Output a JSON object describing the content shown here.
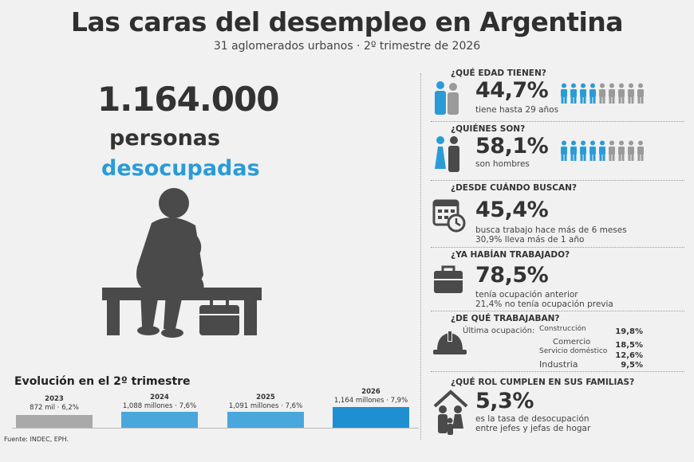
{
  "title": "Las caras del desempleo en Argentina",
  "subtitle": "31 aglomerados urbanos · 2º trimestre de 2026",
  "headline": {
    "number": "1.164.000",
    "line1": "personas",
    "line2": "desocupadas"
  },
  "colors": {
    "accent": "#2b9bd6",
    "gray": "#9a9a9a",
    "dark": "#4a4a4a"
  },
  "sections": {
    "age": {
      "title": "¿QUÉ EDAD TIENEN?",
      "percent": "44,7%",
      "desc": "tiene hasta 29 años",
      "icons_filled": 4,
      "icons_total": 9
    },
    "who": {
      "title": "¿QUIÉNES SON?",
      "percent": "58,1%",
      "desc": "son hombres",
      "icons_filled": 5,
      "icons_total": 9
    },
    "since": {
      "title": "¿DESDE CUÁNDO BUSCAN?",
      "percent": "45,4%",
      "desc1": "busca trabajo hace más de 6 meses",
      "desc2": "30,9% lleva más de 1 año"
    },
    "worked": {
      "title": "¿YA HABÍAN TRABAJADO?",
      "percent": "78,5%",
      "desc1": "tenía ocupación anterior",
      "desc2": "21,4% no tenía ocupación previa"
    },
    "occupation": {
      "title": "¿DE QUÉ TRABAJABAN?",
      "label": "Última ocupación:",
      "items": [
        {
          "name": "Construcción",
          "value": "19,8%"
        },
        {
          "name": "Comercio",
          "value": "18,5%"
        },
        {
          "name": "Servicio doméstico",
          "value": "12,6%"
        },
        {
          "name": "Industria",
          "value": "9,5%"
        }
      ]
    },
    "family": {
      "title": "¿QUÉ ROL CUMPLEN EN SUS FAMILIAS?",
      "percent": "5,3%",
      "desc1": "es la tasa de desocupación",
      "desc2": "entre jefes y jefas de hogar"
    }
  },
  "evolution": {
    "title": "Evolución en el 2º trimestre",
    "years": [
      {
        "year": "2023",
        "value": "872 mil · 6,2%",
        "color": "#a9a9a9"
      },
      {
        "year": "2024",
        "value": "1,088 millones · 7,6%",
        "color": "#4aa7dc"
      },
      {
        "year": "2025",
        "value": "1,091 millones · 7,6%",
        "color": "#4aa7dc"
      },
      {
        "year": "2026",
        "value": "1,164 millones · 7,9%",
        "color": "#1e8fd0"
      }
    ]
  },
  "source": "Fuente: INDEC, EPH."
}
